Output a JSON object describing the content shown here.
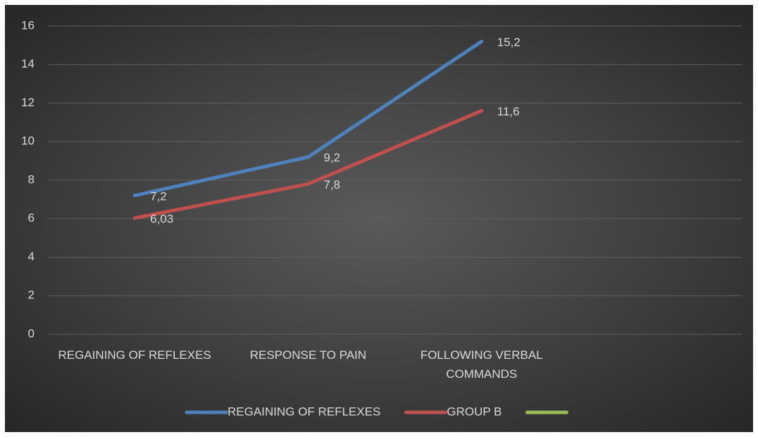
{
  "chart_data": {
    "type": "line",
    "categories": [
      "REGAINING OF REFLEXES",
      "RESPONSE TO PAIN",
      "FOLLOWING VERBAL COMMANDS",
      null
    ],
    "series": [
      {
        "name": "REGAINING OF REFLEXES",
        "color": "#4f81bd",
        "values": [
          7.2,
          9.2,
          15.2,
          null
        ],
        "value_labels": [
          "7,2",
          "9,2",
          "15,2",
          null
        ]
      },
      {
        "name": "GROUP B",
        "color": "#c0504d",
        "values": [
          6.03,
          7.8,
          11.6,
          null
        ],
        "value_labels": [
          "6,03",
          "7,8",
          "11,6",
          null
        ]
      },
      {
        "color": "#9bbb59",
        "values": [
          null,
          null,
          null,
          null
        ]
      }
    ],
    "ylim": [
      0,
      16
    ],
    "yticks": [
      0,
      2,
      4,
      6,
      8,
      10,
      12,
      14,
      16
    ],
    "grid": true,
    "legend": "bottom"
  }
}
